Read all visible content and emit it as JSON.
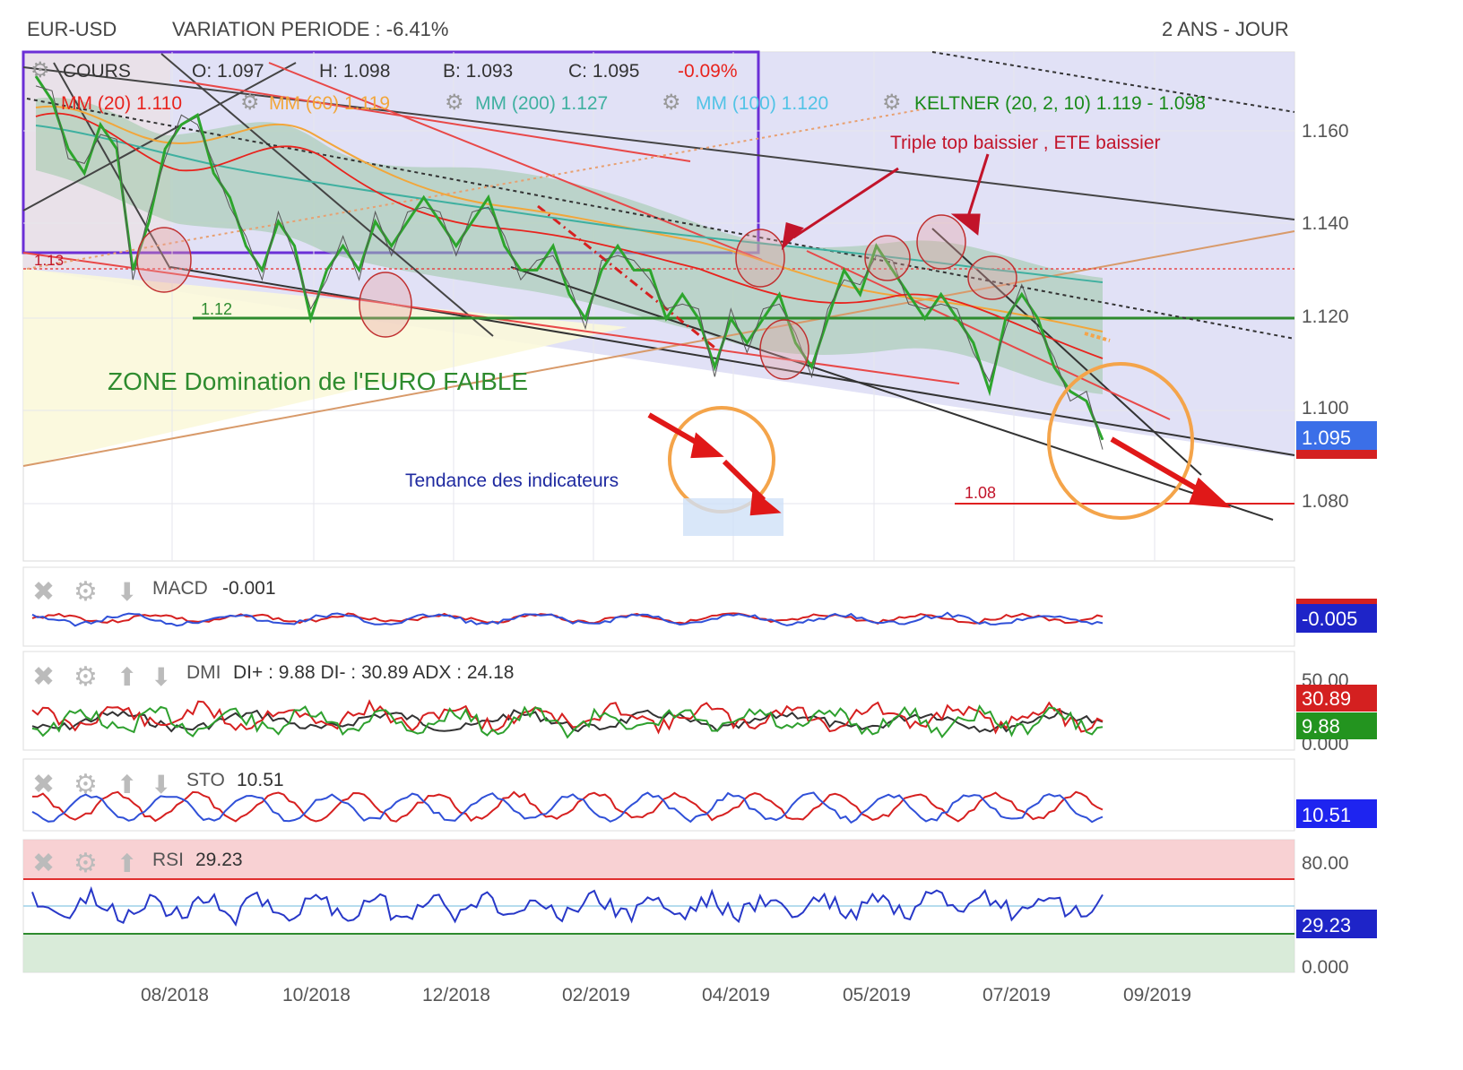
{
  "header": {
    "symbol": "EUR-USD",
    "variation": "VARIATION PERIODE : -6.41%",
    "period": "2 ANS - JOUR"
  },
  "main": {
    "ohlc": {
      "label": "COURS",
      "o": "O: 1.097",
      "h": "H: 1.098",
      "b": "B: 1.093",
      "c": "C: 1.095",
      "change": "-0.09%"
    },
    "indicators": [
      {
        "name": "MM (20)",
        "value": "1.110",
        "color": "#e8231d"
      },
      {
        "name": "MM (60)",
        "value": "1.119",
        "color": "#f2a63a"
      },
      {
        "name": "MM (200)",
        "value": "1.127",
        "color": "#3fb0a0"
      },
      {
        "name": "MM (100)",
        "value": "1.120",
        "color": "#52c3e6"
      },
      {
        "name": "KELTNER (20, 2, 10)",
        "value": "1.119 - 1.098",
        "color": "#1a8a1a"
      }
    ],
    "annotations": {
      "triple_top": "Triple top baissier , ETE baissier",
      "zone": "ZONE Domination de l'EURO FAIBLE",
      "tendance": "Tendance des indicateurs",
      "l113": "1.13",
      "l112": "1.12",
      "l108": "1.08"
    },
    "y_ticks": [
      "1.160",
      "1.140",
      "1.120",
      "1.100",
      "1.080"
    ],
    "price_badge": "1.095"
  },
  "x_ticks": [
    "08/2018",
    "10/2018",
    "12/2018",
    "02/2019",
    "04/2019",
    "05/2019",
    "07/2019",
    "09/2019"
  ],
  "macd": {
    "label": "MACD",
    "value": "-0.001",
    "badge": "-0.005"
  },
  "dmi": {
    "label": "DMI",
    "value": "DI+ : 9.88 DI- : 30.89 ADX : 24.18",
    "ticks": [
      "50.00",
      "0.000"
    ],
    "badge_minus": "30.89",
    "badge_plus": "9.88"
  },
  "sto": {
    "label": "STO",
    "value": "10.51",
    "badge": "10.51"
  },
  "rsi": {
    "label": "RSI",
    "value": "29.23",
    "ticks": [
      "80.00",
      "0.000"
    ],
    "badge": "29.23"
  },
  "chart_data": {
    "type": "line",
    "ylim": [
      1.07,
      1.175
    ],
    "y_ticks": [
      1.16,
      1.14,
      1.12,
      1.1,
      1.08
    ],
    "x_tick_labels": [
      "08/2018",
      "10/2018",
      "12/2018",
      "02/2019",
      "04/2019",
      "05/2019",
      "07/2019",
      "09/2019"
    ],
    "series": [
      {
        "name": "COURS",
        "values": [
          1.17,
          1.165,
          1.155,
          1.15,
          1.16,
          1.155,
          1.13,
          1.14,
          1.155,
          1.16,
          1.162,
          1.15,
          1.145,
          1.135,
          1.13,
          1.14,
          1.135,
          1.12,
          1.13,
          1.135,
          1.13,
          1.14,
          1.135,
          1.14,
          1.145,
          1.14,
          1.135,
          1.14,
          1.145,
          1.135,
          1.13,
          1.13,
          1.135,
          1.125,
          1.12,
          1.13,
          1.135,
          1.13,
          1.13,
          1.12,
          1.125,
          1.12,
          1.11,
          1.12,
          1.115,
          1.12,
          1.125,
          1.115,
          1.11,
          1.12,
          1.13,
          1.125,
          1.135,
          1.13,
          1.125,
          1.12,
          1.125,
          1.12,
          1.115,
          1.105,
          1.12,
          1.125,
          1.12,
          1.11,
          1.105,
          1.103,
          1.095
        ]
      },
      {
        "name": "MM (20)",
        "values": [
          1.165,
          1.16,
          1.158,
          1.155,
          1.15,
          1.148,
          1.145,
          1.142,
          1.14,
          1.14,
          1.138,
          1.135,
          1.133,
          1.13,
          1.128,
          1.128,
          1.127,
          1.126,
          1.125,
          1.123,
          1.12,
          1.118,
          1.117,
          1.12,
          1.122,
          1.12,
          1.118,
          1.115,
          1.113,
          1.11
        ]
      }
    ],
    "macd": {
      "name": "MACD",
      "value": -0.001
    },
    "dmi": {
      "di_plus": 9.88,
      "di_minus": 30.89,
      "adx": 24.18
    },
    "sto": {
      "value": 10.51
    },
    "rsi": {
      "value": 29.23
    }
  }
}
